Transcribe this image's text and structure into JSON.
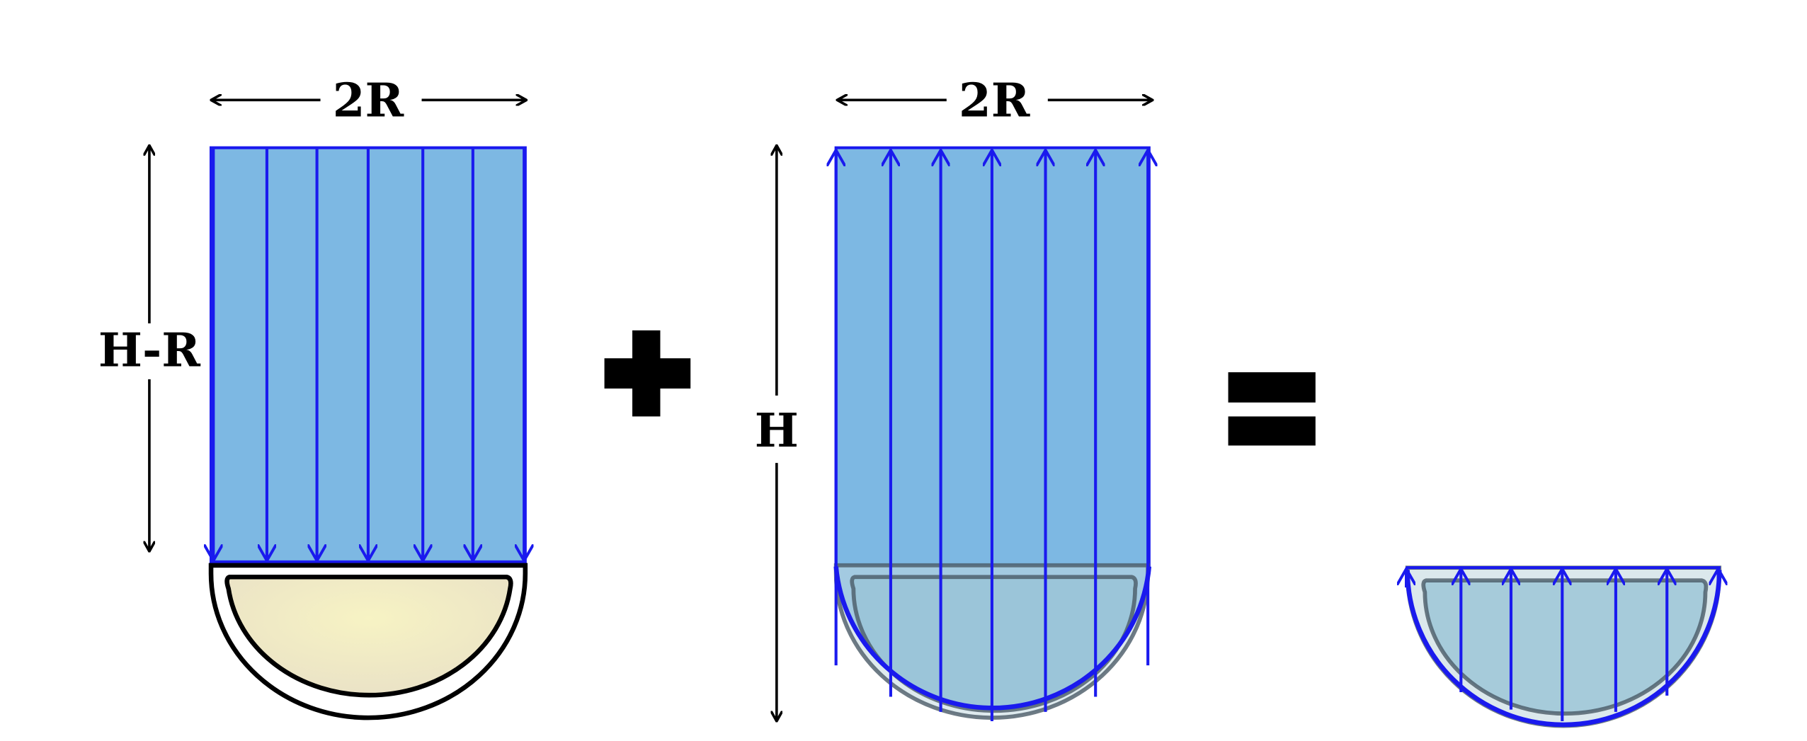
{
  "panel_left": {
    "width_label": "2R",
    "height_label": "H-R",
    "arrow_direction": "down"
  },
  "operator_plus": "+",
  "panel_middle": {
    "width_label": "2R",
    "height_label": "H",
    "arrow_direction": "up"
  },
  "operator_equals": "=",
  "panel_right": {
    "arrow_direction": "up"
  },
  "colors": {
    "fluid_fill": "#7db8e3",
    "pressure_arrows": "#1a1aee",
    "dome_fill": "#efe8c4",
    "dome_outline": "#000000",
    "overlap_fill": "#98c3d6"
  }
}
